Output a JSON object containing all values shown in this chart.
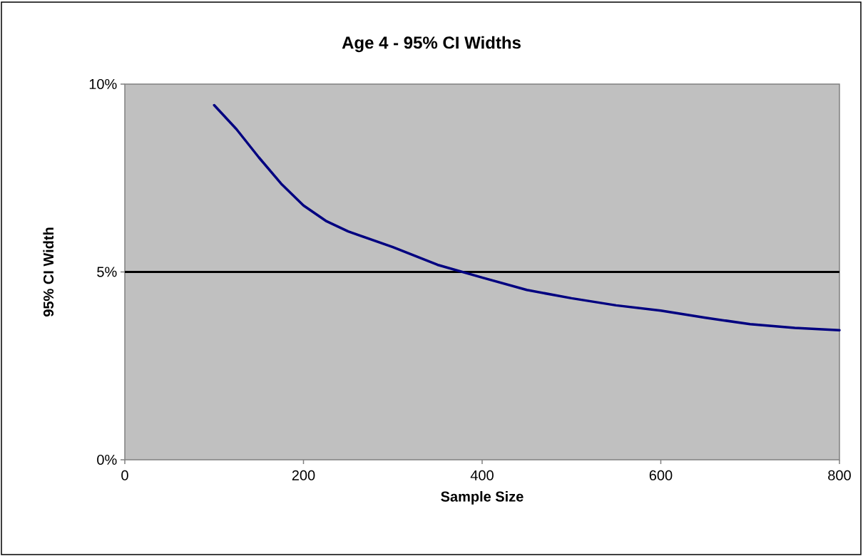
{
  "chart_data": {
    "type": "line",
    "title": "Age 4 - 95% CI Widths",
    "xlabel": "Sample Size",
    "ylabel": "95% CI Width",
    "x": [
      100,
      125,
      150,
      175,
      200,
      225,
      250,
      300,
      350,
      400,
      450,
      500,
      550,
      600,
      650,
      700,
      750,
      800
    ],
    "series": [
      {
        "color": "#000080",
        "values": [
          9.44,
          8.8,
          8.05,
          7.35,
          6.77,
          6.36,
          6.08,
          5.66,
          5.19,
          4.85,
          4.52,
          4.3,
          4.11,
          3.97,
          3.78,
          3.61,
          3.51,
          3.45
        ]
      }
    ],
    "xlim": [
      0,
      800
    ],
    "xticks": [
      0,
      200,
      400,
      600,
      800
    ],
    "ylim": [
      0,
      10
    ],
    "yticks": [
      {
        "value": 0,
        "label": "0%"
      },
      {
        "value": 5,
        "label": "5%"
      },
      {
        "value": 10,
        "label": "10%"
      }
    ],
    "ref_lines": [
      {
        "axis": "y",
        "value": 5,
        "color": "#000000"
      }
    ]
  }
}
